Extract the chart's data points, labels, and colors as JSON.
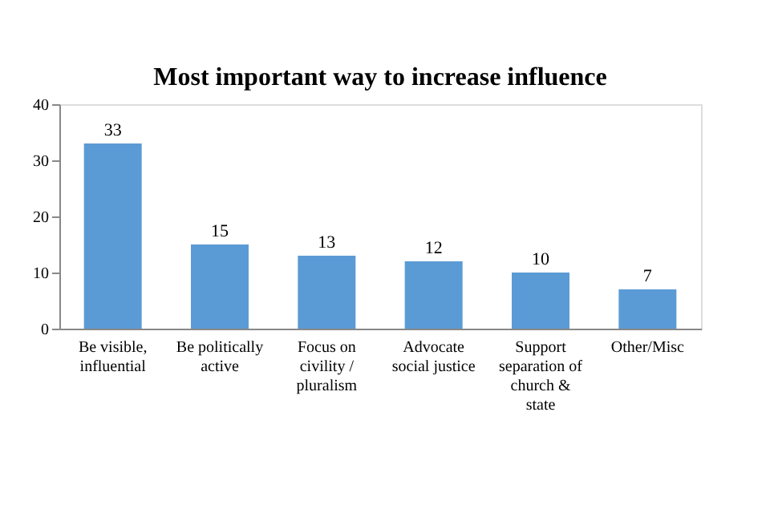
{
  "chart_data": {
    "type": "bar",
    "title": "Most important way to increase influence",
    "categories": [
      "Be visible,\ninfluential",
      "Be politically\nactive",
      "Focus on\ncivility /\npluralism",
      "Advocate\nsocial justice",
      "Support\nseparation of\nchurch &\nstate",
      "Other/Misc"
    ],
    "values": [
      33,
      15,
      13,
      12,
      10,
      7
    ],
    "color": "#5b9bd5",
    "ylim": [
      0,
      40
    ],
    "yticks": [
      0,
      10,
      20,
      30,
      40
    ],
    "grid": false,
    "data_labels": true
  }
}
